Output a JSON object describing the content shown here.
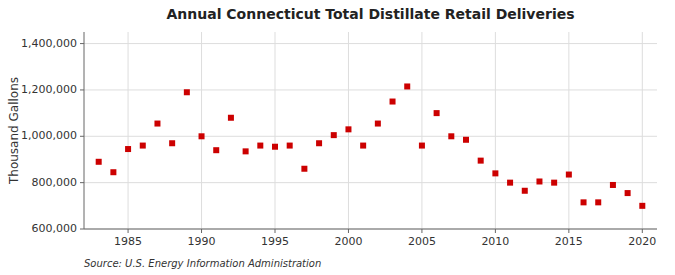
{
  "chart_data": {
    "type": "scatter",
    "title": "Annual Connecticut Total Distillate Retail Deliveries",
    "y_label": "Thousand Gallons",
    "annotations": [
      "Source: U.S. Energy Information Administration"
    ],
    "x": [
      1983,
      1984,
      1985,
      1986,
      1987,
      1988,
      1989,
      1990,
      1991,
      1992,
      1993,
      1994,
      1995,
      1996,
      1997,
      1998,
      1999,
      2000,
      2001,
      2002,
      2003,
      2004,
      2005,
      2006,
      2007,
      2008,
      2009,
      2010,
      2011,
      2012,
      2013,
      2014,
      2015,
      2016,
      2017,
      2018,
      2019,
      2020
    ],
    "values": [
      890000,
      845000,
      945000,
      960000,
      1055000,
      970000,
      1190000,
      1000000,
      940000,
      1080000,
      935000,
      960000,
      955000,
      960000,
      860000,
      970000,
      1005000,
      1030000,
      960000,
      1055000,
      1150000,
      1215000,
      960000,
      1100000,
      1000000,
      985000,
      895000,
      840000,
      800000,
      765000,
      805000,
      800000,
      835000,
      715000,
      715000,
      790000,
      755000,
      700000
    ],
    "color": "#cc0000",
    "marker": "square",
    "xlim": [
      1982,
      2021
    ],
    "ylim": [
      600000,
      1450000
    ],
    "xticks": [
      1985,
      1990,
      1995,
      2000,
      2005,
      2010,
      2015,
      2020
    ],
    "yticks": [
      {
        "value": 600000,
        "label": "600,000"
      },
      {
        "value": 800000,
        "label": "800,000"
      },
      {
        "value": 1000000,
        "label": "1,000,000"
      },
      {
        "value": 1200000,
        "label": "1,200,000"
      },
      {
        "value": 1400000,
        "label": "1,400,000"
      }
    ],
    "grid": true
  }
}
